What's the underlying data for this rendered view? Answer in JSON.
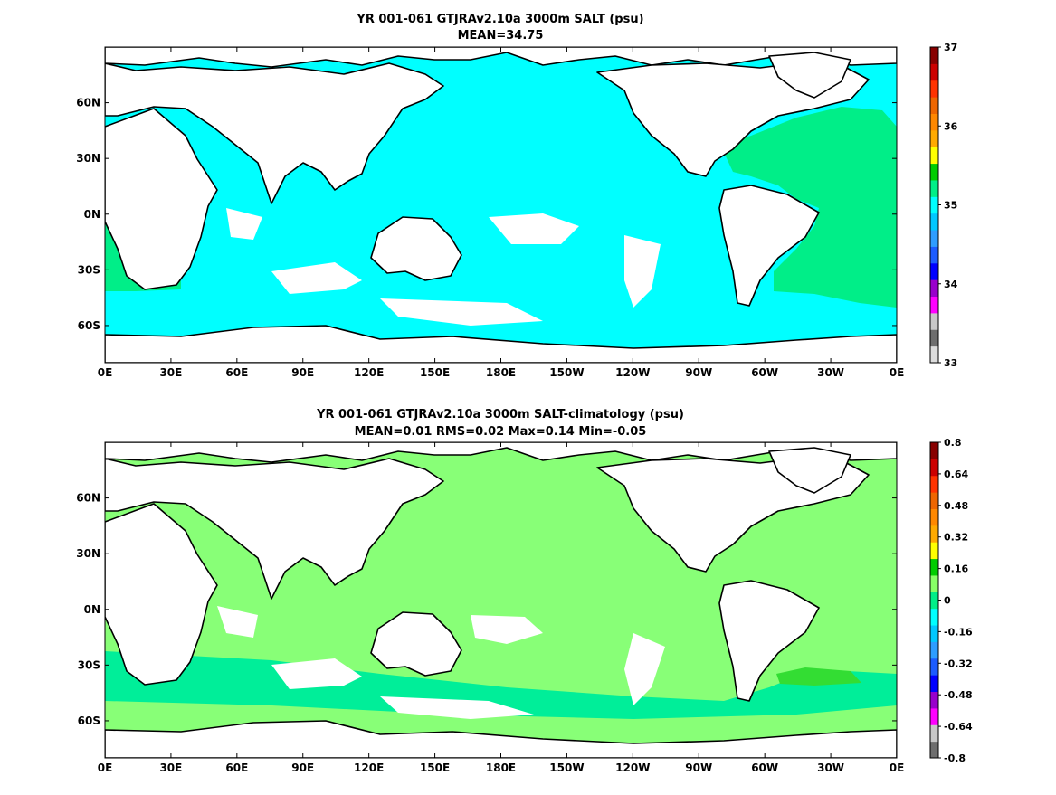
{
  "figure": {
    "panels": [
      {
        "id": "salt",
        "title_line1": "YR 001-061 GTJRAv2.10a 3000m SALT (psu)",
        "title_line2": "MEAN=34.75",
        "colorbar": {
          "labels": [
            "37",
            "36",
            "35",
            "34",
            "33"
          ],
          "colors": [
            "#dcdcdc",
            "#6e6e6e",
            "#c8c8c8",
            "#ff00ff",
            "#9900cc",
            "#0000ff",
            "#1c5cff",
            "#2e9dff",
            "#00c8ff",
            "#00ffff",
            "#00ee88",
            "#00cc00",
            "#ffff00",
            "#ffaa00",
            "#ff8800",
            "#ee6600",
            "#ff3300",
            "#cc0000",
            "#880000"
          ],
          "ocean_color": "#00ffff",
          "patch_color": "#00ee88"
        }
      },
      {
        "id": "diff",
        "title_line1": "YR 001-061 GTJRAv2.10a 3000m SALT-climatology (psu)",
        "title_line2": "MEAN=0.01   RMS=0.02   Max=0.14   Min=-0.05",
        "colorbar": {
          "labels": [
            "0.8",
            "0.64",
            "0.48",
            "0.32",
            "0.16",
            "0",
            "-0.16",
            "-0.32",
            "-0.48",
            "-0.64",
            "-0.8"
          ],
          "colors": [
            "#6e6e6e",
            "#c8c8c8",
            "#ff00ff",
            "#9900cc",
            "#0000ff",
            "#1c5cff",
            "#2e9dff",
            "#00c8ff",
            "#00ffff",
            "#00ee88",
            "#88ff66",
            "#00cc00",
            "#ffff00",
            "#ffaa00",
            "#ff8800",
            "#ee6600",
            "#ff3300",
            "#cc0000",
            "#880000"
          ],
          "ocean_color": "#88ff77",
          "patch_color": "#00ee99"
        }
      }
    ],
    "x_ticks": [
      "0E",
      "30E",
      "60E",
      "90E",
      "120E",
      "150E",
      "180E",
      "150W",
      "120W",
      "90W",
      "60W",
      "30W",
      "0E"
    ],
    "y_ticks": [
      "60N",
      "30N",
      "0N",
      "30S",
      "60S"
    ],
    "x_range_deg": [
      0,
      360
    ],
    "y_range_deg": [
      -80,
      90
    ]
  }
}
